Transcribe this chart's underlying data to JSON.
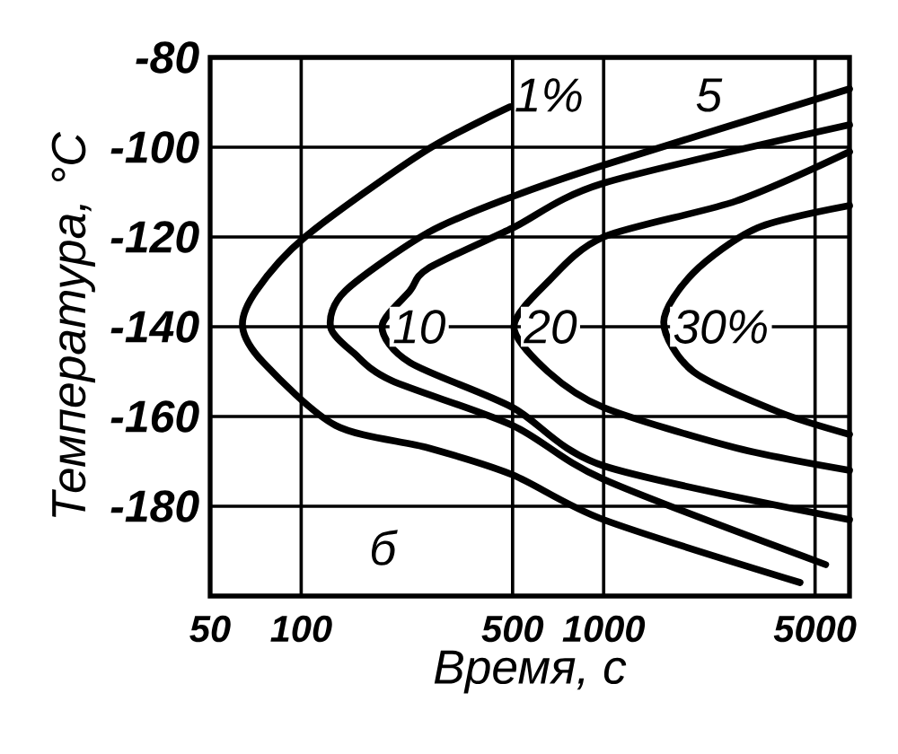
{
  "chart_data": {
    "type": "line",
    "xlabel": "Время, с",
    "ylabel": "Температура, °С",
    "log": "x",
    "xlim": [
      50,
      6500
    ],
    "xticks": [
      50,
      100,
      500,
      1000,
      5000
    ],
    "ylim": [
      -200,
      -80
    ],
    "yticks": [
      -80,
      -100,
      -120,
      -140,
      -160,
      -180
    ],
    "grid": true,
    "marker": "none",
    "line_style": "solid",
    "series": [
      {
        "color": "#000000",
        "x": [
          490,
          255,
          103,
          71,
          64,
          75,
          130,
          263,
          500,
          1000,
          4460
        ],
        "values": [
          -91,
          -101,
          -120,
          -132,
          -140,
          -148,
          -162,
          -167,
          -173,
          -183,
          -197
        ]
      },
      {
        "color": "#000000",
        "x": [
          6500,
          1000,
          500,
          263,
          140,
          125,
          150,
          199,
          500,
          1000,
          5420
        ],
        "values": [
          -87,
          -104,
          -111,
          -119,
          -132,
          -140,
          -146,
          -152,
          -162,
          -174,
          -193
        ]
      },
      {
        "color": "#000000",
        "x": [
          6500,
          1000,
          500,
          263,
          229,
          185,
          229,
          500,
          1000,
          6500
        ],
        "values": [
          -95,
          -108,
          -118,
          -127,
          -132,
          -140,
          -148,
          -158,
          -171,
          -183
        ]
      },
      {
        "color": "#000000",
        "x": [
          6500,
          2740,
          1000,
          654,
          505,
          654,
          1000,
          2740,
          6500
        ],
        "values": [
          -101,
          -112,
          -120,
          -130,
          -140,
          -150,
          -158,
          -167,
          -172
        ]
      },
      {
        "color": "#000000",
        "x": [
          6500,
          3220,
          1980,
          1580,
          1980,
          3790,
          6500
        ],
        "values": [
          -113,
          -118,
          -128,
          -139,
          -150,
          -159,
          -164
        ]
      }
    ],
    "annotations": [
      "1%",
      "5",
      {
        "text": "10",
        "x": 195,
        "y": -140
      },
      {
        "text": "20",
        "x": 530,
        "y": -140
      },
      {
        "text": "30%",
        "x": 1650,
        "y": -140
      },
      "б"
    ]
  }
}
